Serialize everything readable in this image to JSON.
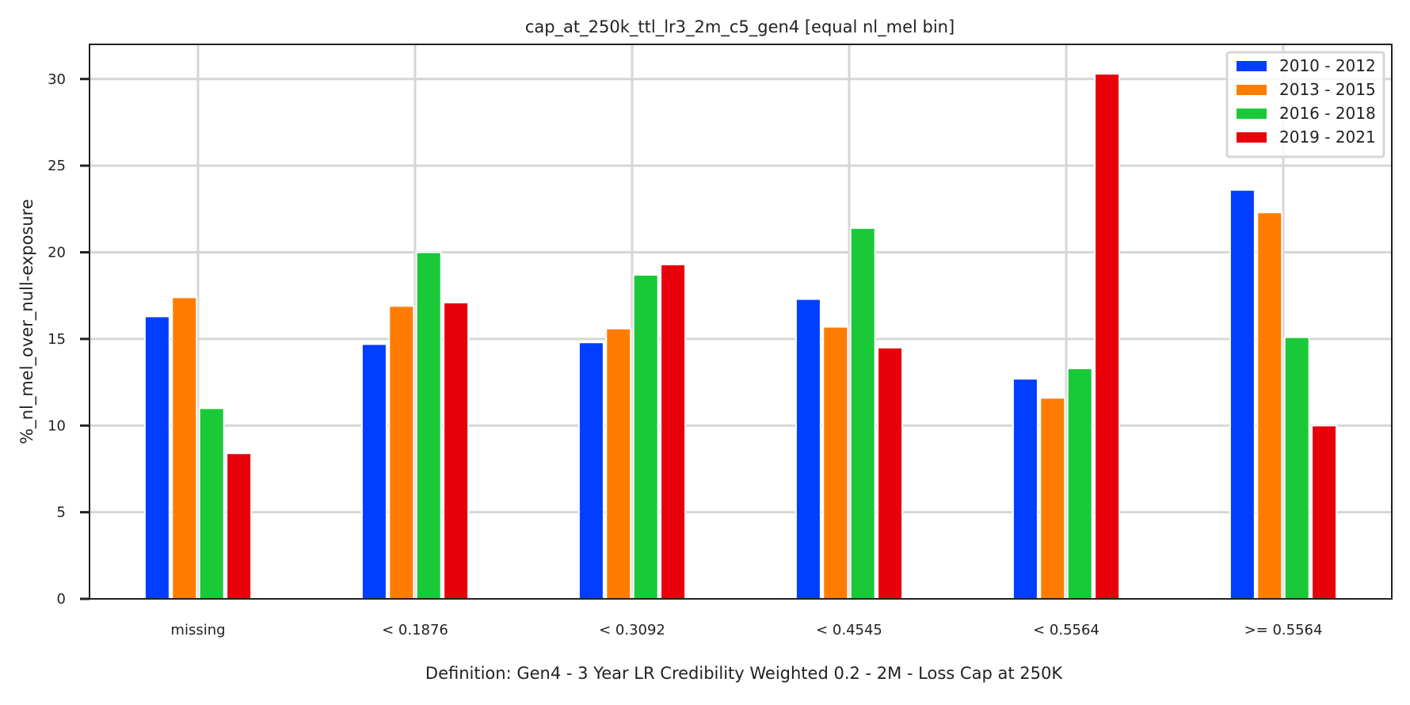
{
  "chart_data": {
    "type": "bar",
    "title": "cap_at_250k_ttl_lr3_2m_c5_gen4 [equal nl_mel bin]",
    "xlabel": "Definition: Gen4 - 3 Year LR Credibility Weighted 0.2 - 2M - Loss Cap at 250K",
    "ylabel": "%_nl_mel_over_null-exposure",
    "categories": [
      "missing",
      "< 0.1876",
      "< 0.3092",
      "< 0.4545",
      "< 0.5564",
      ">= 0.5564"
    ],
    "ylim": [
      0,
      32
    ],
    "yticks": [
      0,
      5,
      10,
      15,
      20,
      25,
      30
    ],
    "grid": true,
    "legend_position": "top-right",
    "series": [
      {
        "name": "2010 - 2012",
        "color": "#023eff",
        "values": [
          16.3,
          14.7,
          14.8,
          17.3,
          12.7,
          23.6
        ]
      },
      {
        "name": "2013 - 2015",
        "color": "#ff7c00",
        "values": [
          17.4,
          16.9,
          15.6,
          15.7,
          11.6,
          22.3
        ]
      },
      {
        "name": "2016 - 2018",
        "color": "#1ac938",
        "values": [
          11.0,
          20.0,
          18.7,
          21.4,
          13.3,
          15.1
        ]
      },
      {
        "name": "2019 - 2021",
        "color": "#e8000b",
        "values": [
          8.4,
          17.1,
          19.3,
          14.5,
          30.3,
          10.0
        ]
      }
    ]
  }
}
